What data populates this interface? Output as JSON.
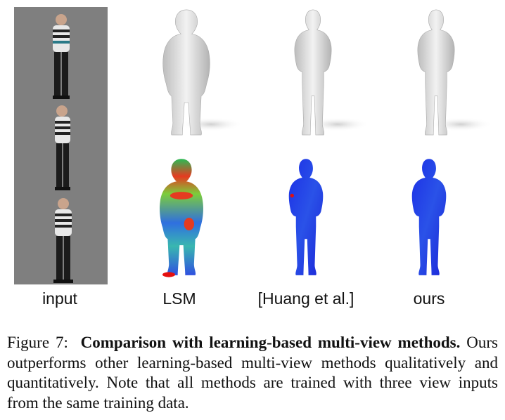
{
  "labels": {
    "input": "input",
    "lsm": "LSM",
    "huang": "[Huang et al.]",
    "ours": "ours"
  },
  "caption": {
    "figure_label": "Figure 7:",
    "bold_text": "Comparison with learning-based multi-view methods.",
    "body_text": "Ours outperforms other learning-based multi-view methods qualitatively and quantitatively. Note that all methods are trained with three view inputs from the same training data."
  },
  "colors": {
    "input_background": "#7f7f7f",
    "mesh_gray": "#d9d9d9",
    "error_low": "#1a2fe0",
    "error_high": "#e01010"
  }
}
